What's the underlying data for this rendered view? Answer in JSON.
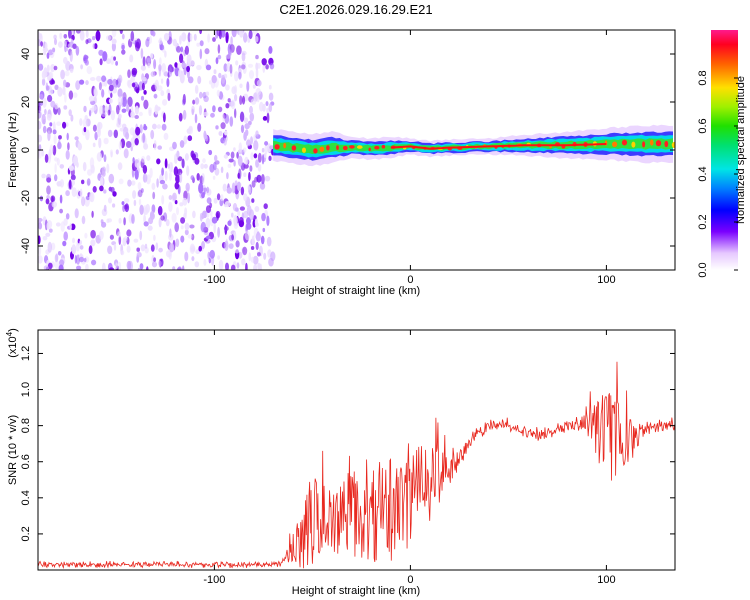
{
  "title": "C2E1.2026.029.16.29.E21",
  "chart_data": [
    {
      "type": "heatmap",
      "title": "C2E1.2026.029.16.29.E21",
      "xlabel": "Height of straight line (km)",
      "ylabel": "Frequency (Hz)",
      "xlim": [
        -190,
        135
      ],
      "ylim": [
        -50,
        50
      ],
      "xticks": [
        -100,
        0,
        100
      ],
      "yticks": [
        -40,
        -20,
        0,
        20,
        40
      ],
      "noise_region_x": [
        -190,
        -70
      ],
      "ridge": {
        "x": [
          -70,
          -60,
          -50,
          -40,
          -30,
          -20,
          -10,
          0,
          10,
          20,
          40,
          60,
          80,
          100,
          120,
          135
        ],
        "freq": [
          2,
          1,
          0,
          1,
          1,
          0.5,
          1,
          1.5,
          0.5,
          1,
          1.5,
          2,
          2,
          2.5,
          2.5,
          2.5
        ],
        "halfwidth_hz": [
          3,
          3,
          3,
          3,
          2,
          2,
          2,
          1.5,
          1.5,
          1.5,
          1.5,
          2,
          2.5,
          3,
          3.5,
          3.5
        ]
      },
      "colorbar": {
        "label": "Normalized spectral amplitude",
        "range": [
          0,
          1
        ],
        "ticks": [
          0.0,
          0.2,
          0.4,
          0.6,
          0.8
        ]
      }
    },
    {
      "type": "line",
      "xlabel": "Height of straight line (km)",
      "ylabel": "SNR (10 * v/v)",
      "y_scale_label": "(x10",
      "y_scale_exp": "4",
      "xlim": [
        -190,
        135
      ],
      "ylim": [
        0,
        1.33
      ],
      "xticks": [
        -100,
        0,
        100
      ],
      "yticks": [
        0.2,
        0.4,
        0.6,
        0.8,
        1.0,
        1.2
      ],
      "series": [
        {
          "name": "SNR",
          "color": "#e8281f",
          "x": [
            -190,
            -170,
            -150,
            -130,
            -110,
            -90,
            -75,
            -65,
            -60,
            -55,
            -50,
            -45,
            -40,
            -35,
            -30,
            -25,
            -20,
            -15,
            -10,
            -5,
            0,
            5,
            10,
            15,
            20,
            25,
            30,
            35,
            40,
            45,
            50,
            55,
            60,
            65,
            70,
            75,
            80,
            85,
            90,
            95,
            100,
            105,
            110,
            115,
            120,
            125,
            135
          ],
          "base": [
            0.03,
            0.03,
            0.03,
            0.03,
            0.03,
            0.03,
            0.03,
            0.04,
            0.12,
            0.2,
            0.26,
            0.28,
            0.26,
            0.28,
            0.32,
            0.27,
            0.3,
            0.32,
            0.34,
            0.38,
            0.42,
            0.46,
            0.48,
            0.52,
            0.55,
            0.62,
            0.7,
            0.76,
            0.8,
            0.81,
            0.8,
            0.78,
            0.76,
            0.74,
            0.76,
            0.78,
            0.8,
            0.81,
            0.8,
            0.76,
            0.74,
            0.76,
            0.72,
            0.74,
            0.78,
            0.8,
            0.8
          ],
          "amp": [
            0.01,
            0.01,
            0.01,
            0.01,
            0.01,
            0.01,
            0.01,
            0.02,
            0.08,
            0.2,
            0.28,
            0.2,
            0.18,
            0.22,
            0.26,
            0.2,
            0.26,
            0.3,
            0.3,
            0.3,
            0.28,
            0.24,
            0.2,
            0.14,
            0.08,
            0.04,
            0.03,
            0.03,
            0.03,
            0.03,
            0.02,
            0.02,
            0.03,
            0.03,
            0.03,
            0.03,
            0.03,
            0.03,
            0.06,
            0.18,
            0.3,
            0.24,
            0.16,
            0.08,
            0.04,
            0.03,
            0.02
          ]
        }
      ]
    }
  ]
}
